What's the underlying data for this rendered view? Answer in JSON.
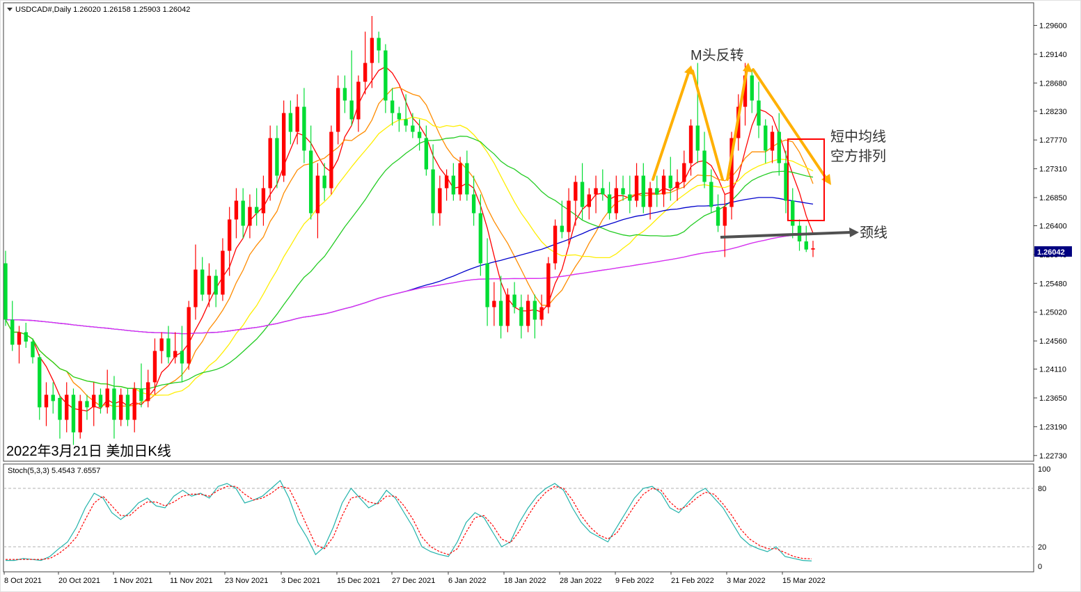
{
  "header": {
    "symbol_line": "USDCAD#,Daily  1.26020 1.26158 1.25903 1.26042"
  },
  "main_caption": "2022年3月21日 美加日K线",
  "price_label": "1.26042",
  "stoch_header": "Stoch(5,3,3) 5.4543 7.6557",
  "annotations": {
    "m_top": "M头反转",
    "ma_bearish_line1": "短中均线",
    "ma_bearish_line2": "空方排列",
    "neckline": "颈线"
  },
  "colors": {
    "bull": "#ff0000",
    "bear": "#00dd33",
    "ma5": "#ff0000",
    "ma10": "#ff8c00",
    "ma20": "#ffee00",
    "ma30": "#22cc22",
    "ma60": "#0000cc",
    "ma120": "#00e5ee",
    "ma200": "#ee22ee",
    "stoch_main": "#20b2aa",
    "stoch_signal": "#ff0000",
    "annotation_arrow": "#ffb000",
    "neckline_arrow": "#505050",
    "highlight_box": "#ff0000"
  },
  "chart_data": [
    {
      "type": "candlestick",
      "title": "USDCAD#,Daily",
      "x_ticks": [
        "8 Oct 2021",
        "20 Oct 2021",
        "1 Nov 2021",
        "11 Nov 2021",
        "23 Nov 2021",
        "3 Dec 2021",
        "15 Dec 2021",
        "27 Dec 2021",
        "6 Jan 2022",
        "18 Jan 2022",
        "28 Jan 2022",
        "9 Feb 2022",
        "21 Feb 2022",
        "3 Mar 2022",
        "15 Mar 2022"
      ],
      "y_ticks": [
        1.2273,
        1.2319,
        1.2365,
        1.2411,
        1.2456,
        1.2502,
        1.2548,
        1.2594,
        1.264,
        1.2685,
        1.2731,
        1.2777,
        1.2823,
        1.2868,
        1.2914,
        1.296
      ],
      "ylim": [
        1.2265,
        1.2995
      ],
      "last_close": 1.26042,
      "ohlc": [
        [
          1.258,
          1.26,
          1.248,
          1.249
        ],
        [
          1.249,
          1.252,
          1.244,
          1.245
        ],
        [
          1.245,
          1.248,
          1.242,
          1.247
        ],
        [
          1.247,
          1.2485,
          1.2445,
          1.2455
        ],
        [
          1.2455,
          1.246,
          1.242,
          1.243
        ],
        [
          1.243,
          1.2435,
          1.233,
          1.235
        ],
        [
          1.235,
          1.239,
          1.232,
          1.237
        ],
        [
          1.237,
          1.239,
          1.234,
          1.236
        ],
        [
          1.2365,
          1.237,
          1.23,
          1.233
        ],
        [
          1.233,
          1.239,
          1.231,
          1.237
        ],
        [
          1.237,
          1.238,
          1.229,
          1.231
        ],
        [
          1.231,
          1.237,
          1.23,
          1.236
        ],
        [
          1.236,
          1.237,
          1.233,
          1.235
        ],
        [
          1.235,
          1.239,
          1.232,
          1.237
        ],
        [
          1.237,
          1.238,
          1.234,
          1.235
        ],
        [
          1.235,
          1.241,
          1.234,
          1.238
        ],
        [
          1.238,
          1.24,
          1.23,
          1.233
        ],
        [
          1.233,
          1.238,
          1.232,
          1.237
        ],
        [
          1.237,
          1.238,
          1.232,
          1.233
        ],
        [
          1.233,
          1.239,
          1.231,
          1.238
        ],
        [
          1.238,
          1.242,
          1.235,
          1.236
        ],
        [
          1.236,
          1.241,
          1.235,
          1.239
        ],
        [
          1.239,
          1.246,
          1.237,
          1.244
        ],
        [
          1.244,
          1.247,
          1.242,
          1.246
        ],
        [
          1.246,
          1.248,
          1.242,
          1.243
        ],
        [
          1.243,
          1.247,
          1.242,
          1.244
        ],
        [
          1.244,
          1.248,
          1.239,
          1.242
        ],
        [
          1.242,
          1.252,
          1.241,
          1.251
        ],
        [
          1.251,
          1.261,
          1.249,
          1.257
        ],
        [
          1.257,
          1.259,
          1.252,
          1.253
        ],
        [
          1.253,
          1.258,
          1.251,
          1.256
        ],
        [
          1.256,
          1.257,
          1.251,
          1.253
        ],
        [
          1.253,
          1.262,
          1.252,
          1.26
        ],
        [
          1.26,
          1.267,
          1.256,
          1.265
        ],
        [
          1.265,
          1.27,
          1.262,
          1.268
        ],
        [
          1.268,
          1.27,
          1.262,
          1.264
        ],
        [
          1.264,
          1.269,
          1.262,
          1.267
        ],
        [
          1.267,
          1.27,
          1.264,
          1.266
        ],
        [
          1.266,
          1.272,
          1.264,
          1.27
        ],
        [
          1.27,
          1.28,
          1.268,
          1.278
        ],
        [
          1.278,
          1.28,
          1.27,
          1.272
        ],
        [
          1.272,
          1.284,
          1.271,
          1.282
        ],
        [
          1.282,
          1.284,
          1.277,
          1.279
        ],
        [
          1.279,
          1.285,
          1.277,
          1.283
        ],
        [
          1.283,
          1.286,
          1.274,
          1.276
        ],
        [
          1.276,
          1.28,
          1.265,
          1.266
        ],
        [
          1.266,
          1.274,
          1.262,
          1.272
        ],
        [
          1.272,
          1.274,
          1.268,
          1.27
        ],
        [
          1.27,
          1.28,
          1.269,
          1.279
        ],
        [
          1.279,
          1.288,
          1.277,
          1.286
        ],
        [
          1.286,
          1.288,
          1.282,
          1.284
        ],
        [
          1.284,
          1.292,
          1.28,
          1.281
        ],
        [
          1.281,
          1.288,
          1.279,
          1.287
        ],
        [
          1.287,
          1.295,
          1.285,
          1.29
        ],
        [
          1.29,
          1.2975,
          1.286,
          1.294
        ],
        [
          1.294,
          1.295,
          1.29,
          1.292
        ],
        [
          1.292,
          1.293,
          1.282,
          1.284
        ],
        [
          1.284,
          1.286,
          1.28,
          1.282
        ],
        [
          1.282,
          1.283,
          1.279,
          1.281
        ],
        [
          1.281,
          1.285,
          1.279,
          1.28
        ],
        [
          1.28,
          1.282,
          1.278,
          1.279
        ],
        [
          1.279,
          1.281,
          1.276,
          1.278
        ],
        [
          1.278,
          1.28,
          1.272,
          1.273
        ],
        [
          1.273,
          1.277,
          1.264,
          1.266
        ],
        [
          1.266,
          1.272,
          1.264,
          1.27
        ],
        [
          1.27,
          1.273,
          1.268,
          1.272
        ],
        [
          1.272,
          1.274,
          1.268,
          1.269
        ],
        [
          1.269,
          1.275,
          1.268,
          1.274
        ],
        [
          1.274,
          1.276,
          1.268,
          1.269
        ],
        [
          1.269,
          1.272,
          1.264,
          1.266
        ],
        [
          1.266,
          1.269,
          1.256,
          1.258
        ],
        [
          1.258,
          1.262,
          1.248,
          1.251
        ],
        [
          1.251,
          1.255,
          1.248,
          1.252
        ],
        [
          1.252,
          1.256,
          1.246,
          1.248
        ],
        [
          1.248,
          1.254,
          1.247,
          1.253
        ],
        [
          1.253,
          1.255,
          1.25,
          1.251
        ],
        [
          1.251,
          1.253,
          1.246,
          1.248
        ],
        [
          1.248,
          1.253,
          1.247,
          1.252
        ],
        [
          1.252,
          1.253,
          1.246,
          1.249
        ],
        [
          1.249,
          1.253,
          1.248,
          1.251
        ],
        [
          1.251,
          1.259,
          1.25,
          1.258
        ],
        [
          1.258,
          1.265,
          1.257,
          1.264
        ],
        [
          1.264,
          1.268,
          1.262,
          1.263
        ],
        [
          1.263,
          1.27,
          1.261,
          1.268
        ],
        [
          1.268,
          1.272,
          1.264,
          1.271
        ],
        [
          1.271,
          1.274,
          1.265,
          1.267
        ],
        [
          1.267,
          1.27,
          1.265,
          1.269
        ],
        [
          1.269,
          1.272,
          1.266,
          1.27
        ],
        [
          1.27,
          1.273,
          1.268,
          1.269
        ],
        [
          1.269,
          1.271,
          1.265,
          1.266
        ],
        [
          1.266,
          1.272,
          1.265,
          1.27
        ],
        [
          1.27,
          1.272,
          1.268,
          1.269
        ],
        [
          1.269,
          1.272,
          1.266,
          1.268
        ],
        [
          1.268,
          1.274,
          1.267,
          1.272
        ],
        [
          1.272,
          1.274,
          1.266,
          1.267
        ],
        [
          1.267,
          1.271,
          1.265,
          1.27
        ],
        [
          1.27,
          1.272,
          1.267,
          1.269
        ],
        [
          1.269,
          1.273,
          1.267,
          1.272
        ],
        [
          1.272,
          1.275,
          1.268,
          1.27
        ],
        [
          1.27,
          1.273,
          1.268,
          1.271
        ],
        [
          1.271,
          1.276,
          1.27,
          1.274
        ],
        [
          1.274,
          1.281,
          1.272,
          1.28
        ],
        [
          1.28,
          1.29,
          1.274,
          1.276
        ],
        [
          1.276,
          1.279,
          1.27,
          1.271
        ],
        [
          1.271,
          1.273,
          1.266,
          1.267
        ],
        [
          1.267,
          1.269,
          1.263,
          1.264
        ],
        [
          1.264,
          1.269,
          1.259,
          1.267
        ],
        [
          1.267,
          1.279,
          1.265,
          1.278
        ],
        [
          1.278,
          1.285,
          1.276,
          1.283
        ],
        [
          1.283,
          1.29,
          1.28,
          1.288
        ],
        [
          1.288,
          1.289,
          1.282,
          1.284
        ],
        [
          1.284,
          1.287,
          1.278,
          1.28
        ],
        [
          1.28,
          1.281,
          1.274,
          1.276
        ],
        [
          1.276,
          1.28,
          1.274,
          1.279
        ],
        [
          1.279,
          1.282,
          1.272,
          1.274
        ],
        [
          1.274,
          1.276,
          1.266,
          1.268
        ],
        [
          1.268,
          1.27,
          1.262,
          1.264
        ],
        [
          1.264,
          1.265,
          1.26,
          1.2615
        ],
        [
          1.2615,
          1.264,
          1.2598,
          1.2602
        ],
        [
          1.2602,
          1.2616,
          1.259,
          1.2604
        ]
      ],
      "moving_averages": [
        {
          "period": 5,
          "color_key": "ma5"
        },
        {
          "period": 10,
          "color_key": "ma10"
        },
        {
          "period": 20,
          "color_key": "ma20"
        },
        {
          "period": 30,
          "color_key": "ma30"
        },
        {
          "period": 60,
          "color_key": "ma60"
        },
        {
          "period": 120,
          "color_key": "ma120"
        },
        {
          "period": 200,
          "color_key": "ma200"
        }
      ]
    },
    {
      "type": "line",
      "title": "Stoch(5,3,3) 5.4543 7.6557",
      "y_ticks": [
        0,
        20,
        80,
        100
      ],
      "ylim": [
        0,
        100
      ],
      "levels": [
        20,
        80
      ],
      "series": [
        {
          "values": [
            6,
            6,
            8,
            7,
            6,
            10,
            18,
            25,
            40,
            60,
            75,
            70,
            55,
            48,
            55,
            65,
            70,
            62,
            60,
            72,
            78,
            72,
            75,
            70,
            82,
            85,
            80,
            65,
            68,
            72,
            80,
            88,
            70,
            45,
            30,
            12,
            20,
            40,
            65,
            80,
            70,
            60,
            65,
            78,
            70,
            55,
            40,
            20,
            15,
            12,
            10,
            25,
            45,
            55,
            50,
            35,
            20,
            25,
            45,
            60,
            72,
            80,
            85,
            78,
            60,
            45,
            35,
            30,
            25,
            40,
            55,
            70,
            80,
            82,
            75,
            60,
            55,
            65,
            75,
            80,
            70,
            60,
            45,
            30,
            22,
            18,
            15,
            20,
            10,
            8,
            6,
            5.45
          ]
        },
        {
          "values": [
            7,
            7,
            7,
            7,
            7,
            8,
            13,
            20,
            30,
            48,
            65,
            72,
            62,
            52,
            52,
            60,
            66,
            66,
            62,
            66,
            72,
            74,
            74,
            72,
            78,
            82,
            82,
            74,
            68,
            70,
            75,
            82,
            80,
            62,
            42,
            22,
            18,
            30,
            52,
            70,
            72,
            66,
            64,
            72,
            72,
            62,
            48,
            30,
            20,
            15,
            12,
            18,
            35,
            50,
            52,
            42,
            28,
            24,
            36,
            52,
            66,
            76,
            82,
            80,
            68,
            52,
            40,
            32,
            28,
            34,
            48,
            62,
            74,
            80,
            78,
            66,
            58,
            62,
            70,
            76,
            74,
            64,
            52,
            38,
            28,
            22,
            18,
            18,
            14,
            10,
            8,
            7.66
          ]
        }
      ]
    }
  ]
}
